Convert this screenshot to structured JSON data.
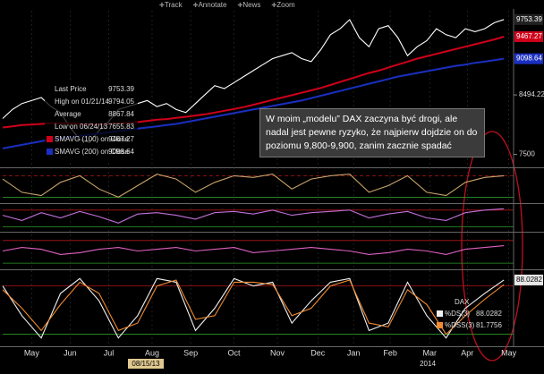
{
  "toolbar": [
    "Track",
    "Annotate",
    "News",
    "Zoom"
  ],
  "note": "W moim „modelu” DAX zaczyna być drogi, ale nadal jest pewne ryzyko, że najpierw dojdzie on do poziomu 9,800-9,900, zanim zacznie spadać",
  "chart_data": [
    {
      "type": "line",
      "xlim": [
        0,
        53
      ],
      "xticks": [
        {
          "value": 3,
          "label": "May"
        },
        {
          "value": 7,
          "label": "Jun"
        },
        {
          "value": 11,
          "label": "Jul"
        },
        {
          "value": 15.5,
          "label": "Aug"
        },
        {
          "value": 19.5,
          "label": "Sep"
        },
        {
          "value": 24,
          "label": "Oct"
        },
        {
          "value": 28.5,
          "label": "Nov"
        },
        {
          "value": 32.7,
          "label": "Dec"
        },
        {
          "value": 36.4,
          "label": "Jan"
        },
        {
          "value": 40.2,
          "label": "Feb"
        },
        {
          "value": 44.3,
          "label": "Mar"
        },
        {
          "value": 48.2,
          "label": "Apr"
        },
        {
          "value": 52.5,
          "label": "May"
        }
      ],
      "axis_notes": [
        "08/15/13",
        "2014"
      ],
      "ylim": [
        7300,
        9900
      ],
      "yticks": [
        7500,
        8494.22
      ],
      "x": [
        0,
        1,
        2,
        3,
        4,
        5,
        6,
        7,
        8,
        9,
        10,
        11,
        12,
        13,
        14,
        15,
        16,
        17,
        18,
        19,
        20,
        21,
        22,
        23,
        24,
        25,
        26,
        27,
        28,
        29,
        30,
        31,
        32,
        33,
        34,
        35,
        36,
        37,
        38,
        39,
        40,
        41,
        42,
        43,
        44,
        45,
        46,
        47,
        48,
        49,
        50,
        51,
        52
      ],
      "stats": [
        {
          "label": "High on 01/21/14",
          "value": 9794.05
        },
        {
          "label": "Average",
          "value": 8867.84
        },
        {
          "label": "Low on 06/24/13",
          "value": 7655.83
        }
      ],
      "series": [
        {
          "name": "Last Price",
          "color": "#ffffff",
          "values": [
            8100,
            8250,
            8350,
            8400,
            8450,
            8300,
            8200,
            7950,
            7750,
            7700,
            7900,
            8050,
            8250,
            8300,
            8350,
            8400,
            8300,
            8350,
            8250,
            8200,
            8350,
            8500,
            8650,
            8600,
            8700,
            8800,
            8900,
            9000,
            9100,
            9150,
            9200,
            9100,
            9050,
            9250,
            9500,
            9600,
            9750,
            9450,
            9300,
            9600,
            9650,
            9450,
            9150,
            9300,
            9400,
            9600,
            9500,
            9450,
            9600,
            9550,
            9600,
            9700,
            9753.39
          ]
        },
        {
          "name": "SMAVG (100) on Close",
          "color": "#d0001a",
          "values": [
            7950,
            7970,
            7990,
            8000,
            8010,
            8020,
            8020,
            8020,
            8010,
            8000,
            8000,
            8010,
            8020,
            8030,
            8040,
            8060,
            8080,
            8090,
            8110,
            8130,
            8150,
            8170,
            8200,
            8230,
            8260,
            8290,
            8330,
            8370,
            8410,
            8450,
            8490,
            8530,
            8570,
            8610,
            8660,
            8710,
            8760,
            8810,
            8860,
            8900,
            8950,
            9000,
            9050,
            9100,
            9140,
            9180,
            9220,
            9260,
            9300,
            9340,
            9380,
            9420,
            9467.27
          ]
        },
        {
          "name": "SMAVG (200) on Close",
          "color": "#1a2fc0",
          "values": [
            7600,
            7630,
            7660,
            7690,
            7720,
            7750,
            7770,
            7790,
            7810,
            7830,
            7850,
            7870,
            7890,
            7910,
            7930,
            7950,
            7970,
            7990,
            8010,
            8040,
            8070,
            8100,
            8130,
            8160,
            8190,
            8220,
            8250,
            8280,
            8310,
            8340,
            8370,
            8400,
            8440,
            8480,
            8520,
            8560,
            8600,
            8640,
            8680,
            8720,
            8760,
            8800,
            8830,
            8860,
            8890,
            8920,
            8950,
            8980,
            9000,
            9030,
            9050,
            9075,
            9098.64
          ]
        }
      ]
    },
    {
      "type": "line",
      "xlim": [
        0,
        53
      ],
      "ylim": [
        0,
        100
      ],
      "x": [
        0,
        2,
        4,
        6,
        8,
        10,
        12,
        14,
        16,
        18,
        20,
        22,
        24,
        26,
        28,
        30,
        32,
        34,
        36,
        38,
        40,
        42,
        44,
        46,
        48,
        50,
        52
      ],
      "series": [
        {
          "color": "#c9a46a",
          "values": [
            70,
            30,
            20,
            60,
            80,
            40,
            15,
            50,
            85,
            70,
            30,
            60,
            80,
            75,
            85,
            40,
            70,
            80,
            85,
            30,
            50,
            80,
            30,
            20,
            60,
            75,
            80
          ]
        }
      ]
    },
    {
      "type": "line",
      "xlim": [
        0,
        53
      ],
      "ylim": [
        0,
        100
      ],
      "x": [
        0,
        2,
        4,
        6,
        8,
        10,
        12,
        14,
        16,
        18,
        20,
        22,
        24,
        26,
        28,
        30,
        32,
        34,
        36,
        38,
        40,
        42,
        44,
        46,
        48,
        50,
        52
      ],
      "series": [
        {
          "color": "#c070d8",
          "values": [
            60,
            40,
            70,
            50,
            75,
            55,
            30,
            65,
            70,
            60,
            45,
            70,
            75,
            65,
            80,
            60,
            70,
            75,
            80,
            50,
            65,
            75,
            50,
            40,
            70,
            80,
            85
          ]
        }
      ]
    },
    {
      "type": "line",
      "xlim": [
        0,
        53
      ],
      "ylim": [
        0,
        100
      ],
      "x": [
        0,
        2,
        4,
        6,
        8,
        10,
        12,
        14,
        16,
        18,
        20,
        22,
        24,
        26,
        28,
        30,
        32,
        34,
        36,
        38,
        40,
        42,
        44,
        46,
        48,
        50,
        52
      ],
      "series": [
        {
          "color": "#e060c0",
          "values": [
            50,
            60,
            55,
            40,
            45,
            55,
            60,
            50,
            55,
            60,
            50,
            55,
            60,
            45,
            50,
            55,
            60,
            55,
            50,
            40,
            45,
            55,
            50,
            40,
            55,
            60,
            65
          ]
        }
      ]
    },
    {
      "type": "line",
      "xlim": [
        0,
        53
      ],
      "ylim": [
        0,
        100
      ],
      "title": "DAX",
      "x": [
        0,
        2,
        4,
        6,
        8,
        10,
        12,
        14,
        16,
        18,
        20,
        22,
        24,
        26,
        28,
        30,
        32,
        34,
        36,
        38,
        40,
        42,
        44,
        46,
        48,
        50,
        52
      ],
      "series": [
        {
          "name": "%DS(3)",
          "color": "#f0f0f0",
          "values": [
            80,
            40,
            10,
            70,
            90,
            60,
            10,
            40,
            90,
            85,
            20,
            50,
            90,
            80,
            85,
            30,
            60,
            85,
            90,
            20,
            30,
            85,
            40,
            10,
            50,
            70,
            88.0282
          ]
        },
        {
          "name": "%DSS(3)",
          "color": "#f08a30",
          "values": [
            75,
            50,
            20,
            55,
            85,
            70,
            20,
            30,
            80,
            88,
            35,
            40,
            85,
            85,
            82,
            40,
            50,
            80,
            88,
            30,
            25,
            75,
            55,
            15,
            40,
            62,
            81.7756
          ]
        }
      ]
    }
  ]
}
